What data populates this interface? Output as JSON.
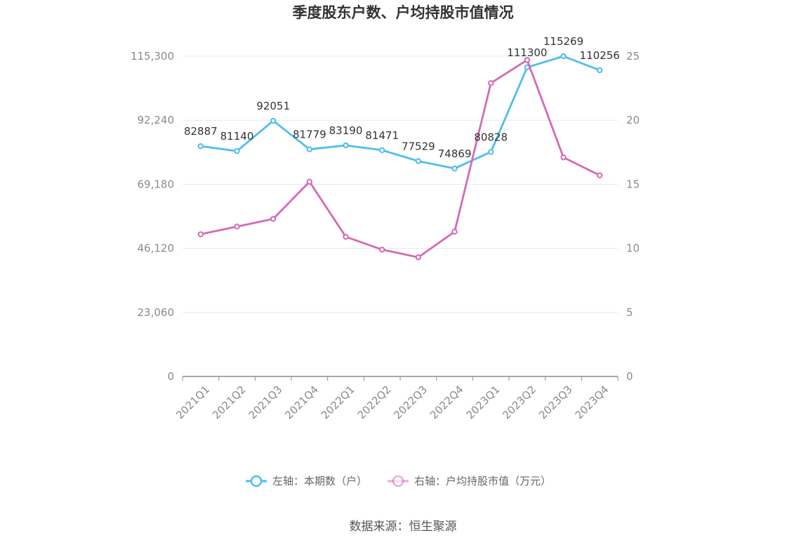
{
  "chart_data": {
    "type": "line",
    "title": "季度股东户数、户均持股市值情况",
    "categories": [
      "2021Q1",
      "2021Q2",
      "2021Q3",
      "2021Q4",
      "2022Q1",
      "2022Q2",
      "2022Q3",
      "2022Q4",
      "2023Q1",
      "2023Q2",
      "2023Q3",
      "2023Q4"
    ],
    "left_axis": {
      "ylim": [
        0,
        115300
      ],
      "ticks": [
        0,
        23060,
        46120,
        69180,
        92240,
        115300
      ],
      "tick_labels": [
        "0",
        "23,060",
        "46,120",
        "69,180",
        "92,240",
        "115,300"
      ]
    },
    "right_axis": {
      "ylim": [
        0,
        25
      ],
      "ticks": [
        0,
        5,
        10,
        15,
        20,
        25
      ],
      "tick_labels": [
        "0",
        "5",
        "10",
        "15",
        "20",
        "25"
      ]
    },
    "series": [
      {
        "name": "左轴：本期数（户）",
        "axis": "left",
        "color": "#4fbdee",
        "values": [
          82887,
          81140,
          92051,
          81779,
          83190,
          81471,
          77529,
          74869,
          80828,
          111300,
          115269,
          110256
        ],
        "labels": [
          "82887",
          "81140",
          "92051",
          "81779",
          "83190",
          "81471",
          "77529",
          "74869",
          "80828",
          "111300",
          "115269",
          "110256"
        ]
      },
      {
        "name": "右轴：户均持股市值（万元）",
        "axis": "right",
        "color": "#d46bb3",
        "values": [
          11.1,
          11.7,
          12.3,
          15.2,
          10.9,
          9.9,
          9.3,
          11.3,
          22.9,
          24.7,
          17.1,
          15.7
        ]
      }
    ],
    "grid": true,
    "legend_position": "bottom"
  },
  "source": "数据来源：恒生聚源"
}
